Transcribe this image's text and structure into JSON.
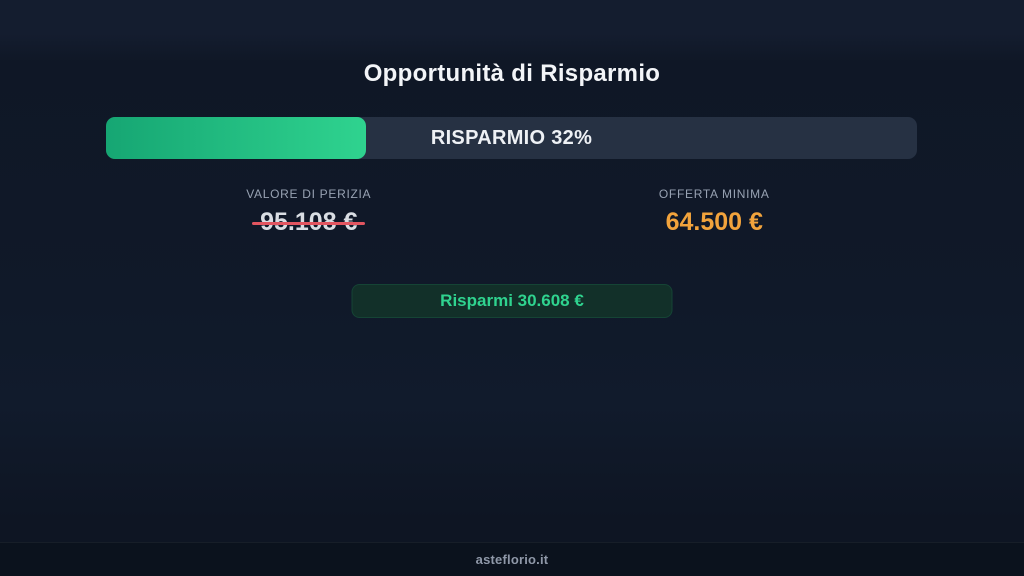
{
  "section": {
    "title": "Opportunità di Risparmio",
    "progress": {
      "label": "RISPARMIO 32%",
      "percent": 32
    },
    "appraisal": {
      "label": "VALORE DI PERIZIA",
      "value": "95.108 €"
    },
    "minimum_offer": {
      "label": "OFFERTA MINIMA",
      "value": "64.500 €"
    },
    "badge": "Risparmi 30.608 €"
  },
  "footer": {
    "site": "asteflorio.it"
  },
  "colors": {
    "accent_green": "#2fd38f",
    "green_gradient_start": "#16a673",
    "orange": "#f2a33c",
    "strike_red": "#e25560",
    "track": "#263143",
    "badge_bg": "#123029",
    "muted_label": "#98a2b3"
  }
}
